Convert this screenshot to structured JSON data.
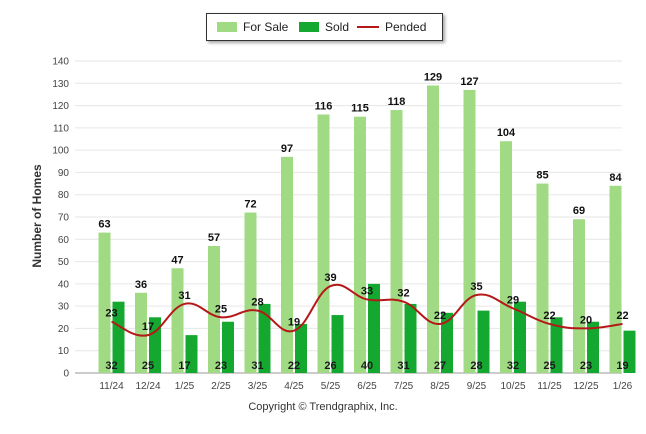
{
  "legend": {
    "for_sale": "For Sale",
    "sold": "Sold",
    "pended": "Pended"
  },
  "copyright": "Copyright © Trendgraphix, Inc.",
  "colors": {
    "for_sale": "#a0db84",
    "sold": "#15a830",
    "pended": "#b51818"
  },
  "chart_data": {
    "type": "bar",
    "ylabel": "Number of Homes",
    "xlabel": "",
    "ylim": [
      0,
      140
    ],
    "yticks": [
      0,
      10,
      20,
      30,
      40,
      50,
      60,
      70,
      80,
      90,
      100,
      110,
      120,
      130,
      140
    ],
    "grid": true,
    "legend_position": "top-center",
    "categories": [
      "11/24",
      "12/24",
      "1/25",
      "2/25",
      "3/25",
      "4/25",
      "5/25",
      "6/25",
      "7/25",
      "8/25",
      "9/25",
      "10/25",
      "11/25",
      "12/25",
      "1/26"
    ],
    "series": [
      {
        "name": "For Sale",
        "type": "bar",
        "values": [
          63,
          36,
          47,
          57,
          72,
          97,
          116,
          115,
          118,
          129,
          127,
          104,
          85,
          69,
          84
        ]
      },
      {
        "name": "Sold",
        "type": "bar",
        "values": [
          32,
          25,
          17,
          23,
          31,
          22,
          26,
          40,
          31,
          27,
          28,
          32,
          25,
          23,
          19
        ]
      },
      {
        "name": "Pended",
        "type": "line",
        "values": [
          23,
          17,
          31,
          25,
          28,
          19,
          39,
          33,
          32,
          22,
          35,
          29,
          22,
          20,
          22
        ]
      }
    ]
  }
}
